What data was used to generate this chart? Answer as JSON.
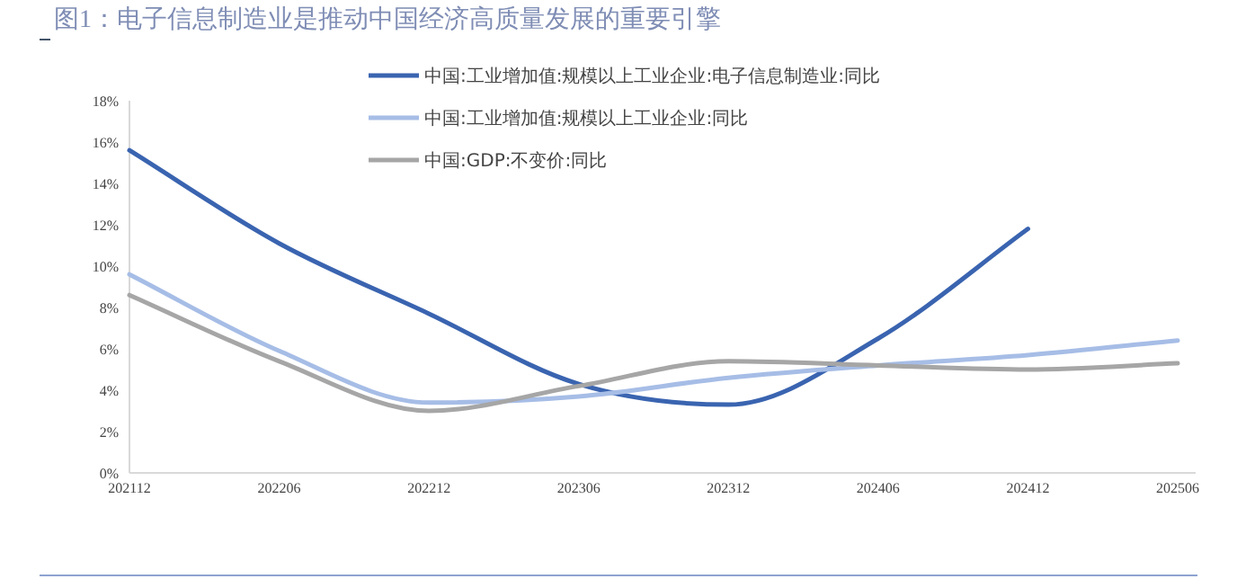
{
  "chart_data": {
    "type": "line",
    "title": "图1：电子信息制造业是推动中国经济高质量发展的重要引擎",
    "categories": [
      "202112",
      "202206",
      "202212",
      "202306",
      "202312",
      "202406",
      "202412",
      "202506"
    ],
    "series": [
      {
        "name": "中国:工业增加值:规模以上工业企业:电子信息制造业:同比",
        "color": "#3a64b0",
        "values": [
          15.6,
          11.1,
          7.7,
          4.3,
          3.3,
          6.5,
          11.8,
          null
        ]
      },
      {
        "name": "中国:工业增加值:规模以上工业企业:同比",
        "color": "#a6bde6",
        "values": [
          9.6,
          5.9,
          3.4,
          3.7,
          4.6,
          5.2,
          5.7,
          6.4
        ]
      },
      {
        "name": "中国:GDP:不变价:同比",
        "color": "#a6a6a6",
        "values": [
          8.6,
          5.4,
          3.0,
          4.2,
          5.4,
          5.2,
          5.0,
          5.3
        ]
      }
    ],
    "ylim": [
      0,
      18
    ],
    "yticks": [
      {
        "value": 0,
        "label": "0%"
      },
      {
        "value": 2,
        "label": "2%"
      },
      {
        "value": 4,
        "label": "4%"
      },
      {
        "value": 6,
        "label": "6%"
      },
      {
        "value": 8,
        "label": "8%"
      },
      {
        "value": 10,
        "label": "10%"
      },
      {
        "value": 12,
        "label": "12%"
      },
      {
        "value": 14,
        "label": "14%"
      },
      {
        "value": 16,
        "label": "16%"
      },
      {
        "value": 18,
        "label": "18%"
      }
    ],
    "legend": "top"
  }
}
